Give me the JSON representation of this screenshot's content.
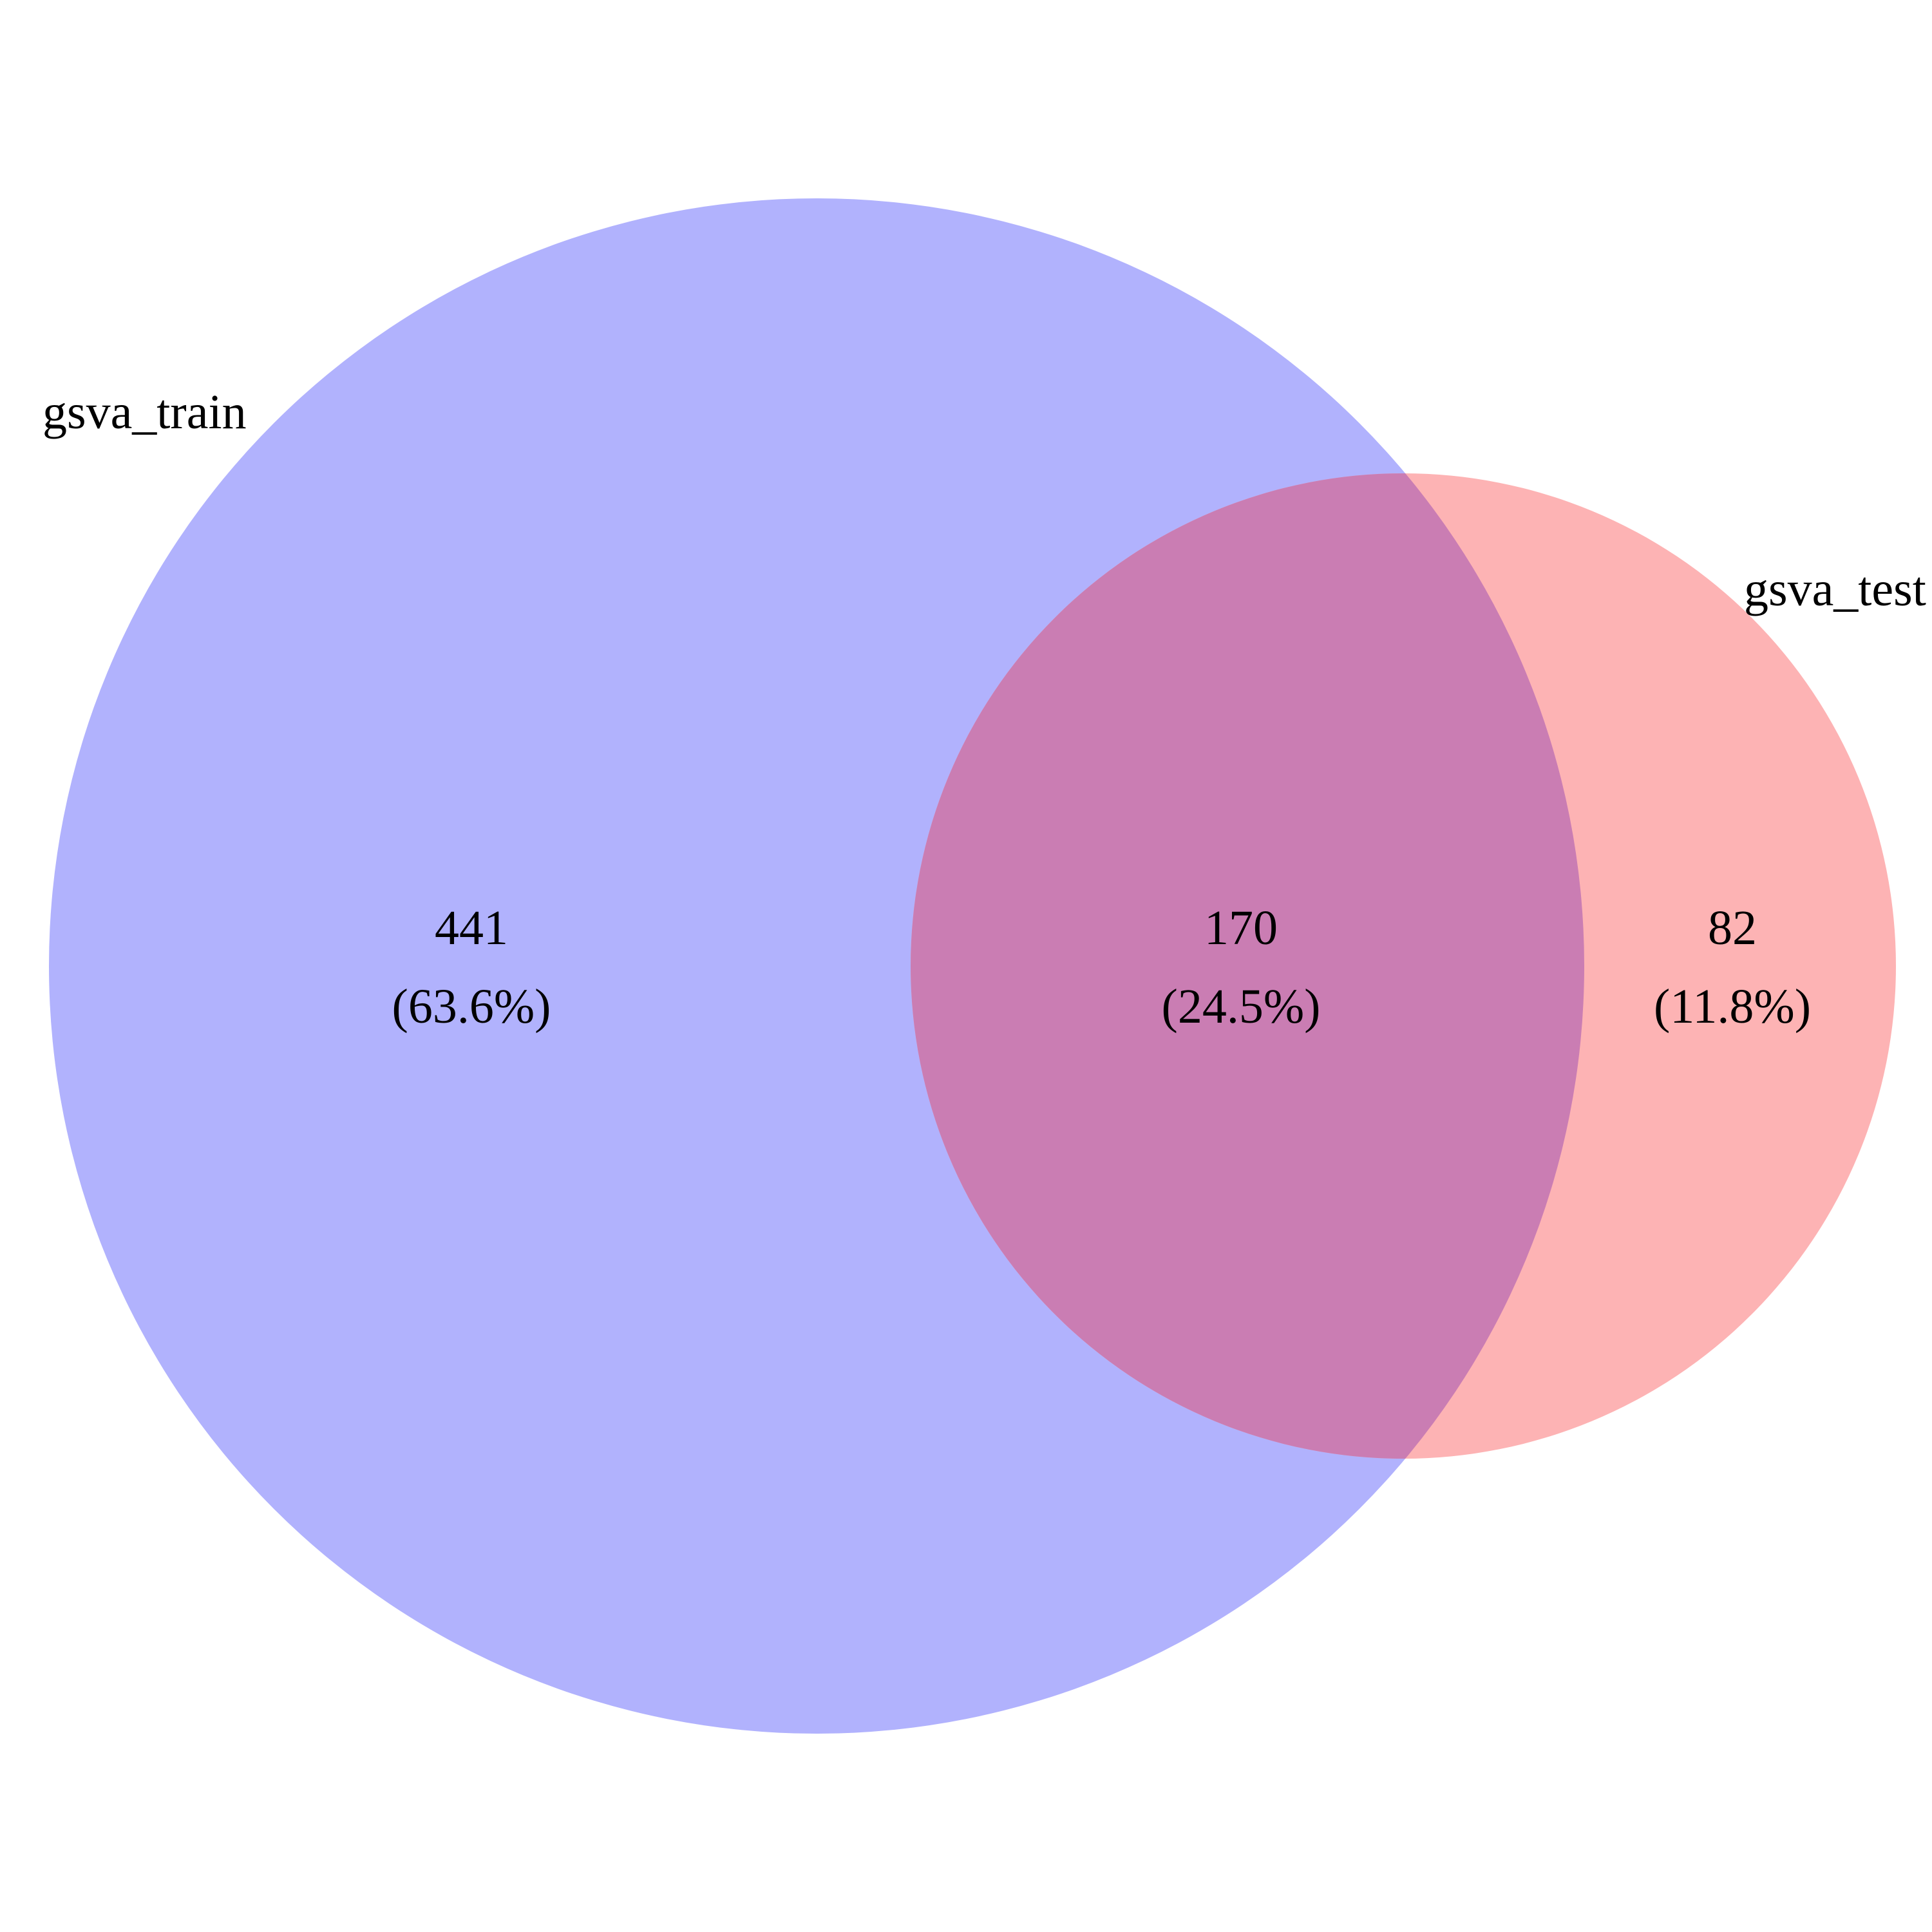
{
  "diagram": {
    "type": "venn",
    "sets": [
      {
        "name": "gsva_train",
        "color": "#b1b2fd"
      },
      {
        "name": "gsva_test",
        "color": "#fdb3b4"
      }
    ],
    "overlap_color": "#ca7db3",
    "regions": [
      {
        "id": "train_only",
        "count": "441",
        "percent": "(63.6%)"
      },
      {
        "id": "both",
        "count": "170",
        "percent": "(24.5%)"
      },
      {
        "id": "test_only",
        "count": "82",
        "percent": "(11.8%)"
      }
    ]
  }
}
